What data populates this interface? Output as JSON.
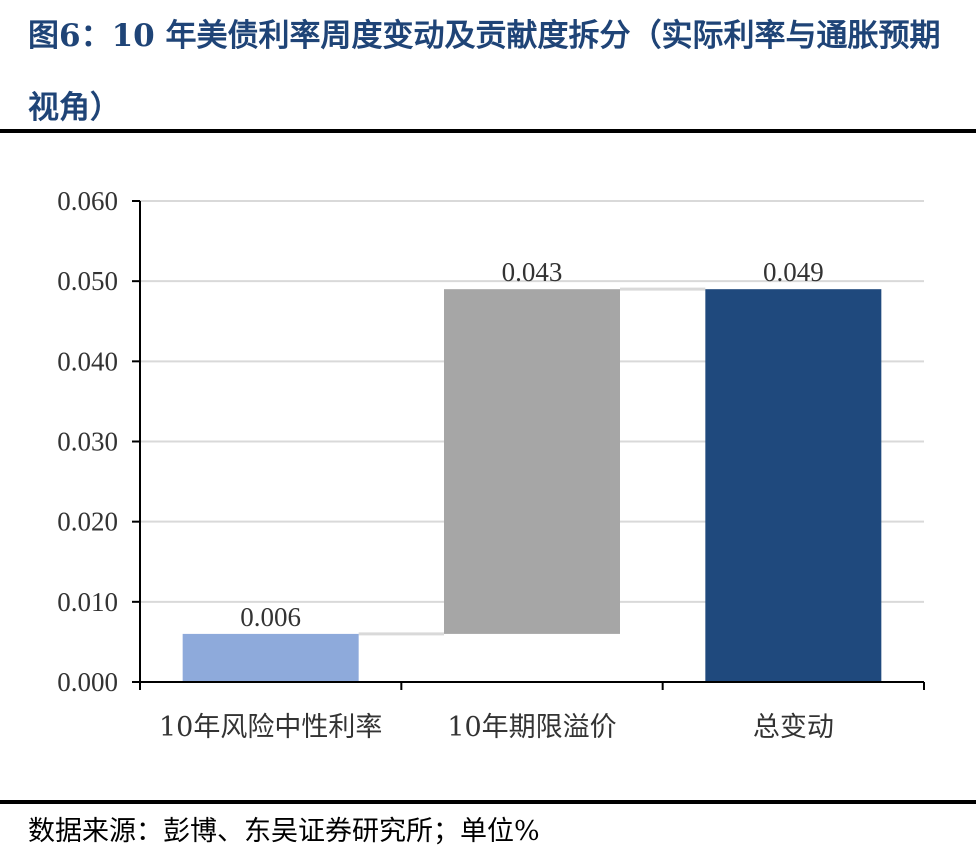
{
  "header": {
    "title": "图6：10 年美债利率周度变动及贡献度拆分（实际利率与通胀预期视角）"
  },
  "footer": {
    "source": "数据来源：彭博、东吴证券研究所；单位%"
  },
  "chart_data": {
    "type": "bar",
    "subtype": "waterfall",
    "categories": [
      "10年风险中性利率",
      "10年期限溢价",
      "总变动"
    ],
    "values": [
      0.006,
      0.043,
      0.049
    ],
    "bar_base": [
      0,
      0.006,
      0
    ],
    "bar_top": [
      0.006,
      0.049,
      0.049
    ],
    "data_labels": [
      "0.006",
      "0.043",
      "0.049"
    ],
    "colors": [
      "#8eaadb",
      "#a6a6a6",
      "#1f497d"
    ],
    "ylim": [
      0,
      0.06
    ],
    "yticks": [
      0.0,
      0.01,
      0.02,
      0.03,
      0.04,
      0.05,
      0.06
    ],
    "ytick_labels": [
      "0.000",
      "0.010",
      "0.020",
      "0.030",
      "0.040",
      "0.050",
      "0.060"
    ],
    "grid": true,
    "legend": "none",
    "title": "",
    "xlabel": "",
    "ylabel": ""
  }
}
